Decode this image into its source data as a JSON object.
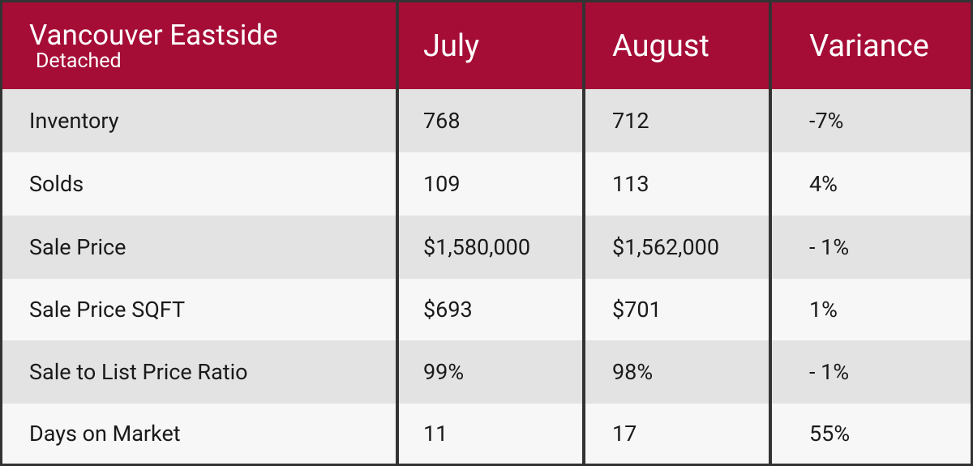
{
  "header": {
    "title": "Vancouver Eastside",
    "subtitle": "Detached",
    "columns": [
      "July",
      "August",
      "Variance"
    ]
  },
  "table": {
    "rows": [
      [
        "Inventory",
        "768",
        "712",
        "-7%"
      ],
      [
        "Solds",
        "109",
        "113",
        "4%"
      ],
      [
        "Sale Price",
        "$1,580,000",
        "$1,562,000",
        "- 1%"
      ],
      [
        "Sale Price SQFT",
        "$693",
        "$701",
        "1%"
      ],
      [
        "Sale to List Price Ratio",
        "99%",
        "98%",
        "- 1%"
      ],
      [
        "Days on Market",
        "11",
        "17",
        "55%"
      ]
    ]
  }
}
